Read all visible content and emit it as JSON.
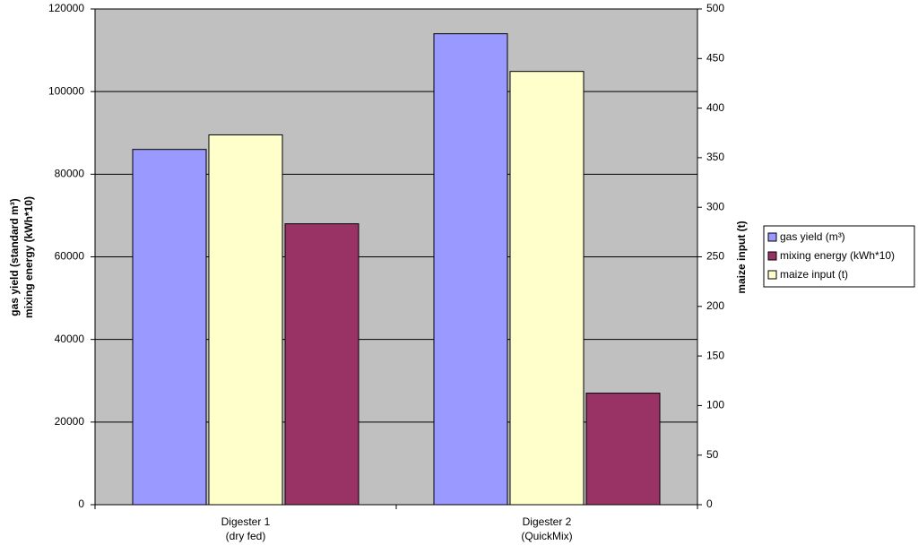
{
  "chart_data": {
    "type": "bar",
    "categories": [
      [
        "Digester 1",
        "(dry fed)"
      ],
      [
        "Digester 2",
        "(QuickMix)"
      ]
    ],
    "series": [
      {
        "name": "gas yield (m³)",
        "color": "#9999ff",
        "values": [
          86000,
          114000
        ]
      },
      {
        "name": "mixing energy (kWh*10)",
        "color": "#993366",
        "values": [
          68000,
          27000
        ]
      },
      {
        "name": "maize input (t)",
        "color": "#ffffcc",
        "values": [
          373,
          437
        ],
        "axis": "y2"
      }
    ],
    "ylabel": [
      "gas yield (standard m³)",
      "mixing energy (kWh*10)"
    ],
    "y2label": "maize input (t)",
    "ylim": [
      0,
      120000
    ],
    "yticks": [
      0,
      20000,
      40000,
      60000,
      80000,
      100000,
      120000
    ],
    "y2lim": [
      0,
      500
    ],
    "y2ticks": [
      0,
      50,
      100,
      150,
      200,
      250,
      300,
      350,
      400,
      450,
      500
    ],
    "grid": true,
    "legend": "right"
  }
}
